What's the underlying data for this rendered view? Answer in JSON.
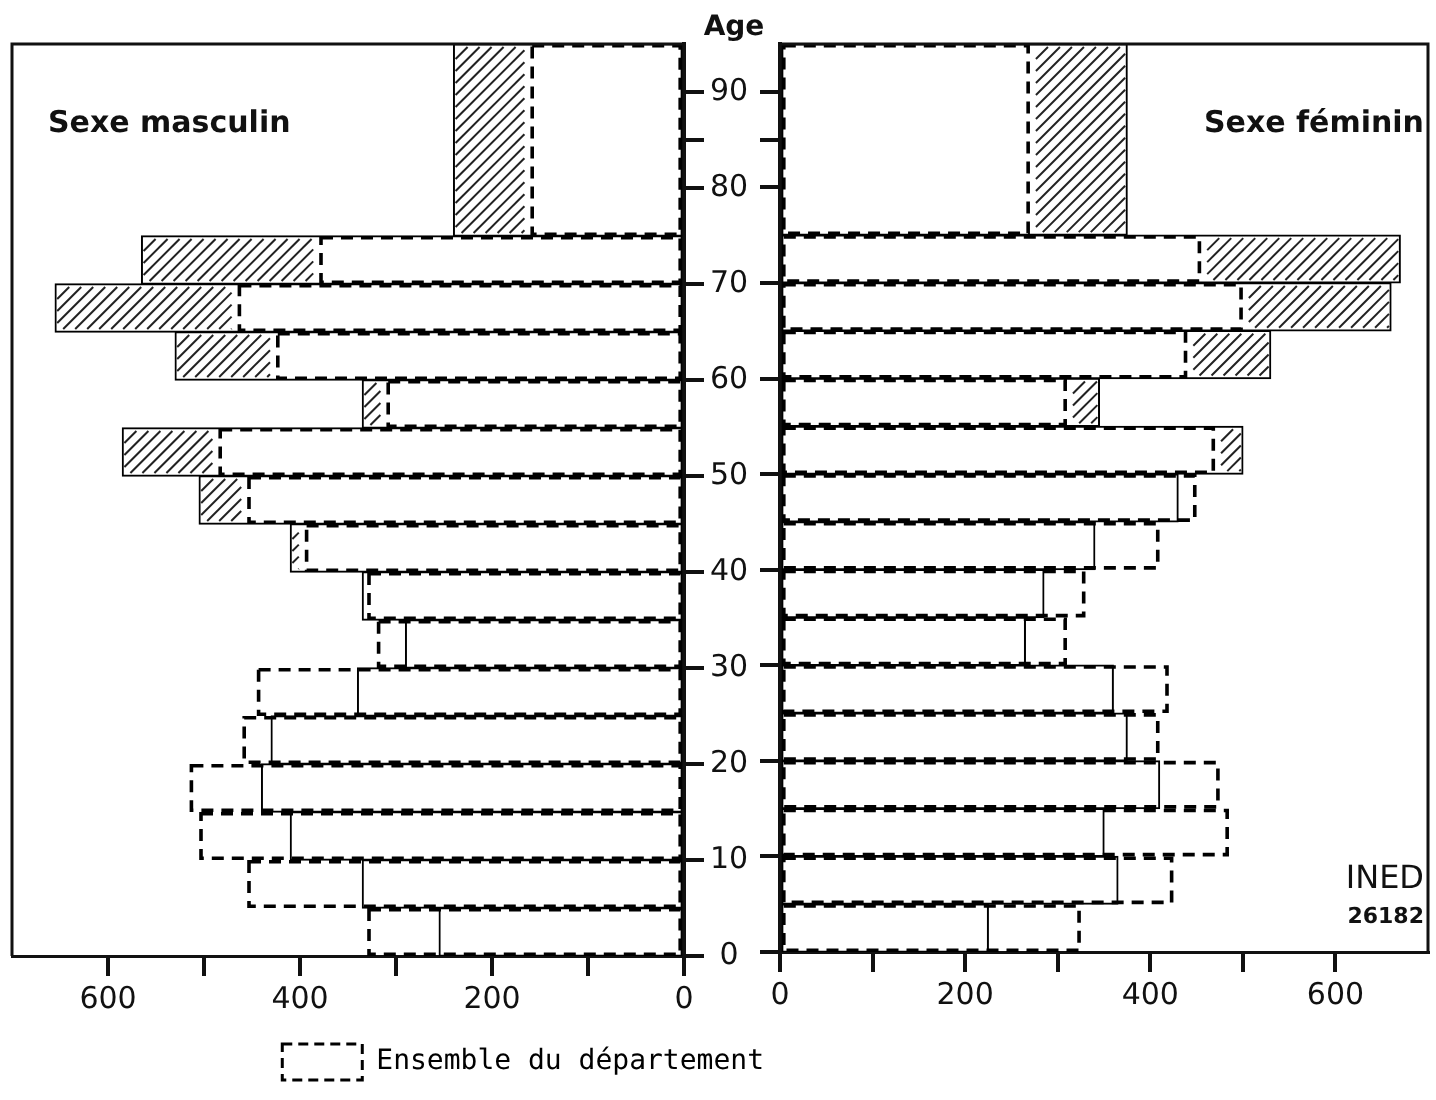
{
  "chart_data": [
    {
      "type": "histogram",
      "orientation": "horizontal",
      "title": "Sexe masculin",
      "ylabel": "Age",
      "bins": [
        0,
        5,
        10,
        15,
        20,
        25,
        30,
        35,
        40,
        45,
        50,
        55,
        60,
        65,
        70,
        75,
        95
      ],
      "series": [
        {
          "color": "#ffffff",
          "values": [
            255,
            335,
            410,
            440,
            430,
            340,
            290,
            335,
            410,
            505,
            585,
            335,
            530,
            655,
            565,
            240
          ]
        },
        {
          "name": "Ensemble du département",
          "color": "#000000",
          "line_style": "dashed",
          "values": [
            330,
            455,
            505,
            515,
            460,
            445,
            320,
            330,
            395,
            455,
            485,
            310,
            425,
            465,
            380,
            160
          ]
        }
      ],
      "xlim": [
        700,
        0
      ],
      "xticks": [
        0,
        {
          "value": 100,
          "label": null
        },
        200,
        {
          "value": 300,
          "label": null
        },
        400,
        {
          "value": 500,
          "label": null
        },
        600
      ],
      "ylim": [
        0,
        95
      ],
      "yticks": [
        0,
        10,
        20,
        30,
        40,
        50,
        60,
        70,
        80,
        {
          "value": 85,
          "label": null
        },
        90
      ],
      "legend": "bottom"
    },
    {
      "type": "histogram",
      "orientation": "horizontal",
      "title": "Sexe féminin",
      "bins": [
        0,
        5,
        10,
        15,
        20,
        25,
        30,
        35,
        40,
        45,
        50,
        55,
        60,
        65,
        70,
        75,
        95
      ],
      "series": [
        {
          "color": "#ffffff",
          "values": [
            225,
            365,
            350,
            410,
            375,
            360,
            265,
            285,
            340,
            430,
            500,
            345,
            530,
            660,
            670,
            375
          ]
        },
        {
          "color": "#000000",
          "line_style": "dashed",
          "values": [
            325,
            425,
            485,
            475,
            410,
            420,
            310,
            330,
            410,
            450,
            470,
            310,
            440,
            500,
            455,
            270
          ]
        }
      ],
      "xlim": [
        0,
        700
      ],
      "xticks": [
        0,
        {
          "value": 100,
          "label": null
        },
        200,
        {
          "value": 300,
          "label": null
        },
        400,
        {
          "value": 500,
          "label": null
        },
        600
      ],
      "ylim": [
        0,
        95
      ],
      "yticks": [
        0,
        10,
        20,
        30,
        40,
        50,
        60,
        70,
        80,
        {
          "value": 85,
          "label": null
        },
        90
      ],
      "tick_labels": "x",
      "annotations": [
        "INED",
        "26182"
      ]
    }
  ]
}
